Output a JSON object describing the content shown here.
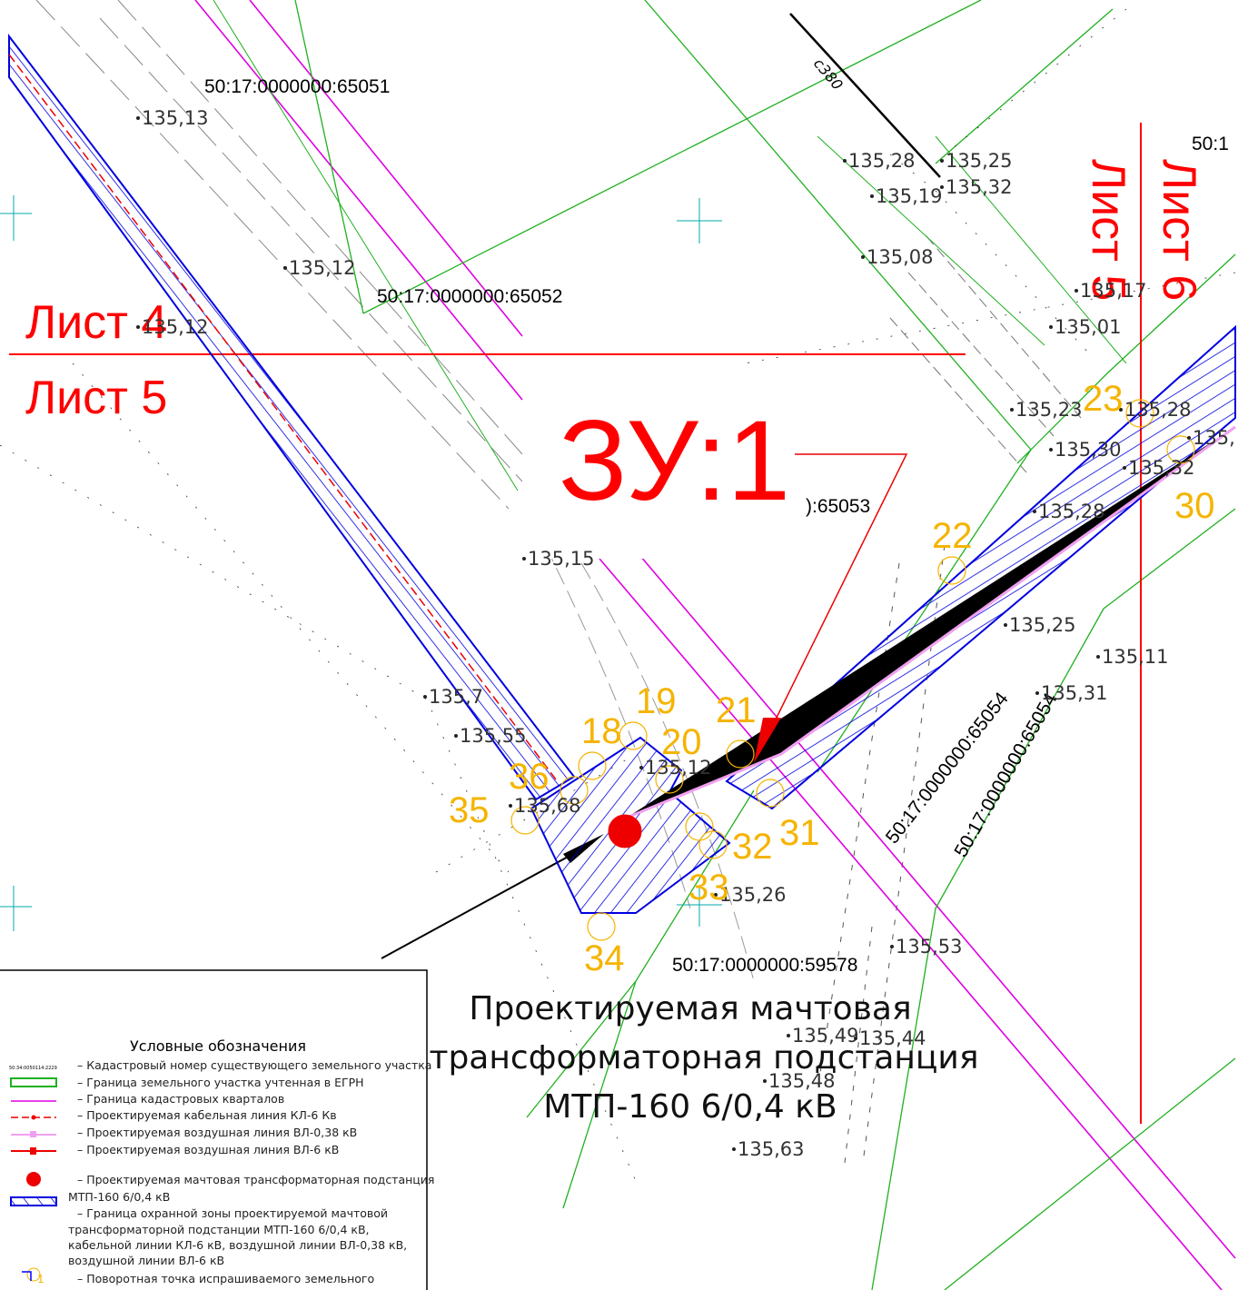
{
  "cadastral_numbers": [
    "50:17:0000000:65051",
    "50:17:0000000:65052",
    "):65053",
    "50:17:0000000:59578",
    "50:17:0000000:65054",
    "50:17:0000000:65054",
    "50:1"
  ],
  "sheets": [
    "Лист 4",
    "Лист 5",
    "Лист 5",
    "Лист 6"
  ],
  "plot_label": "ЗУ:1",
  "road_label": "с380",
  "elevations": [
    "135,13",
    "135,12",
    "135,12",
    "135,28",
    "135,25",
    "135,19",
    "135,32",
    "135,08",
    "135,17",
    "135,01",
    "135,23",
    "135,28",
    "135,30",
    "135,32",
    "135,",
    "135,28",
    "135,25",
    "135,11",
    "135,31",
    "135,7",
    "135,55",
    "135,12",
    "135,68",
    "135,15",
    "135,26",
    "135,53",
    "135,49",
    "135,44",
    "135,48",
    "135,63"
  ],
  "points": [
    "18",
    "19",
    "20",
    "21",
    "22",
    "23",
    "30",
    "31",
    "32",
    "33",
    "34",
    "35",
    "36"
  ],
  "callout": [
    "Проектируемая мачтовая",
    "трансформаторная подстанция",
    "МТП-160 6/0,4 кВ"
  ],
  "legend": {
    "title": "Условные обозначения",
    "sample_number": "50:34:0050114:2229",
    "sample_point": "1",
    "lines": [
      "– Кадастровый номер существующего земельного участка",
      "– Граница земельного участка учтенная в ЕГРН",
      "– Граница кадастровых кварталов",
      "– Проектируемая кабельная линия КЛ-6 Кв",
      "– Проектируемая воздушная линия ВЛ-0,38 кВ",
      "– Проектируемая воздушная линия ВЛ-6 кВ",
      "– Проектируемая мачтовая трансформаторная подстанция",
      "МТП-160 6/0,4 кВ",
      "– Граница охранной зоны проектируемой мачтовой",
      "трансформаторной подстанции МТП-160 6/0,4 кВ,",
      "кабельной линии КЛ-6 кВ, воздушной линии ВЛ-0,38 кВ,",
      "воздушной линии ВЛ-6 кВ",
      "– Поворотная точка испрашиваемого земельного"
    ]
  }
}
